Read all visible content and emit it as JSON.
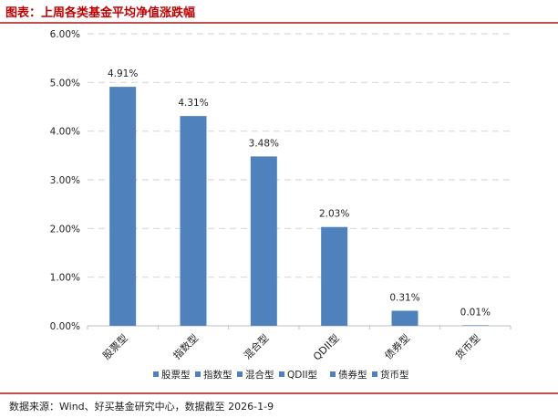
{
  "title": "图表：上周各类基金平均净值涨跌幅",
  "source": "数据来源：Wind、好买基金研究中心，数据截至 2026-1-9",
  "chart_data": {
    "type": "bar",
    "categories": [
      "股票型",
      "指数型",
      "混合型",
      "QDII型",
      "债券型",
      "货币型"
    ],
    "values": [
      4.91,
      4.31,
      3.48,
      2.03,
      0.31,
      0.01
    ],
    "data_labels": [
      "4.91%",
      "4.31%",
      "3.48%",
      "2.03%",
      "0.31%",
      "0.01%"
    ],
    "y_ticks": [
      "0.00%",
      "1.00%",
      "2.00%",
      "3.00%",
      "4.00%",
      "5.00%",
      "6.00%"
    ],
    "ylim": [
      0,
      6
    ],
    "grid": true,
    "legend_position": "bottom",
    "bar_color": "#4f81bd"
  }
}
